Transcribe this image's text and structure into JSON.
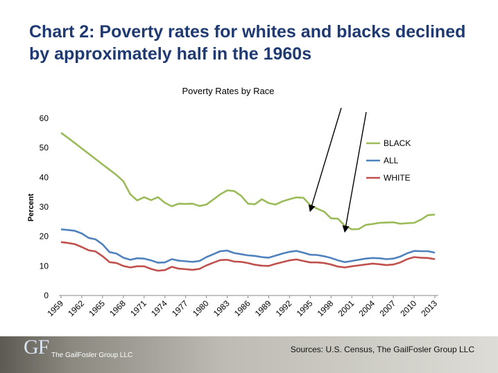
{
  "title": {
    "line1": "Chart 2: Poverty rates for whites and blacks declined",
    "line2": "by approximately half in the 1960s"
  },
  "footer": {
    "logo_mark": "GF",
    "logo_text": "The GailFosler Group LLC",
    "sources": "Sources: U.S. Census, The GailFosler Group LLC"
  },
  "colors": {
    "black_series": "#9bbb59",
    "all_series": "#4f81bd",
    "white_series": "#c0504d",
    "title": "#1f3a73"
  },
  "chart_data": {
    "type": "line",
    "title": "Poverty Rates by Race",
    "xlabel": "",
    "ylabel": "Percent",
    "ylim": [
      0,
      60
    ],
    "yticks": [
      0,
      10,
      20,
      30,
      40,
      50,
      60
    ],
    "xticks": [
      "1959",
      "1962",
      "1965",
      "1968",
      "1971",
      "1974",
      "1977",
      "1980",
      "1983",
      "1986",
      "1989",
      "1992",
      "1995",
      "1998",
      "2001",
      "2004",
      "2007",
      "2010",
      "2013"
    ],
    "x": [
      1959,
      1960,
      1961,
      1962,
      1963,
      1964,
      1965,
      1966,
      1967,
      1968,
      1969,
      1970,
      1971,
      1972,
      1973,
      1974,
      1975,
      1976,
      1977,
      1978,
      1979,
      1980,
      1981,
      1982,
      1983,
      1984,
      1985,
      1986,
      1987,
      1988,
      1989,
      1990,
      1991,
      1992,
      1993,
      1994,
      1995,
      1996,
      1997,
      1998,
      1999,
      2000,
      2001,
      2002,
      2003,
      2004,
      2005,
      2006,
      2007,
      2008,
      2009,
      2010,
      2011,
      2012,
      2013
    ],
    "series": [
      {
        "name": "BLACK",
        "values": [
          55.1,
          53.4,
          51.6,
          49.8,
          48.0,
          46.2,
          44.4,
          42.6,
          40.8,
          38.7,
          34.3,
          32.2,
          33.3,
          32.3,
          33.3,
          31.4,
          30.2,
          31.1,
          31.0,
          31.1,
          30.3,
          30.8,
          32.5,
          34.3,
          35.6,
          35.4,
          33.8,
          31.1,
          30.9,
          32.6,
          31.3,
          30.8,
          31.9,
          32.6,
          33.2,
          33.1,
          30.6,
          29.4,
          28.4,
          26.1,
          26.0,
          23.6,
          22.4,
          22.5,
          23.9,
          24.2,
          24.6,
          24.7,
          24.8,
          24.3,
          24.5,
          24.6,
          25.7,
          27.2,
          27.4
        ]
      },
      {
        "name": "ALL",
        "values": [
          22.4,
          22.2,
          21.9,
          21.0,
          19.5,
          19.0,
          17.3,
          14.7,
          14.2,
          12.8,
          12.1,
          12.6,
          12.5,
          11.9,
          11.1,
          11.2,
          12.3,
          11.8,
          11.6,
          11.4,
          11.7,
          13.0,
          14.0,
          15.0,
          15.2,
          14.4,
          14.0,
          13.6,
          13.4,
          13.0,
          12.8,
          13.5,
          14.2,
          14.8,
          15.1,
          14.5,
          13.8,
          13.7,
          13.3,
          12.7,
          11.9,
          11.3,
          11.7,
          12.1,
          12.5,
          12.7,
          12.6,
          12.3,
          12.5,
          13.2,
          14.3,
          15.1,
          15.0,
          15.0,
          14.5
        ]
      },
      {
        "name": "WHITE",
        "values": [
          18.1,
          17.8,
          17.4,
          16.4,
          15.3,
          14.9,
          13.3,
          11.3,
          11.0,
          10.0,
          9.5,
          9.9,
          9.9,
          9.0,
          8.4,
          8.6,
          9.7,
          9.1,
          8.9,
          8.7,
          9.0,
          10.2,
          11.1,
          12.0,
          12.1,
          11.5,
          11.4,
          11.0,
          10.4,
          10.1,
          10.0,
          10.7,
          11.3,
          11.9,
          12.2,
          11.7,
          11.2,
          11.2,
          11.0,
          10.5,
          9.8,
          9.5,
          9.9,
          10.2,
          10.5,
          10.8,
          10.6,
          10.3,
          10.5,
          11.2,
          12.3,
          13.0,
          12.8,
          12.7,
          12.3
        ]
      }
    ],
    "legend": [
      "BLACK",
      "ALL",
      "WHITE"
    ],
    "legend_position": "right",
    "annotations": [
      {
        "type": "arrow",
        "target_year": 1995
      },
      {
        "type": "arrow",
        "target_year": 2000
      }
    ],
    "grid": false
  }
}
